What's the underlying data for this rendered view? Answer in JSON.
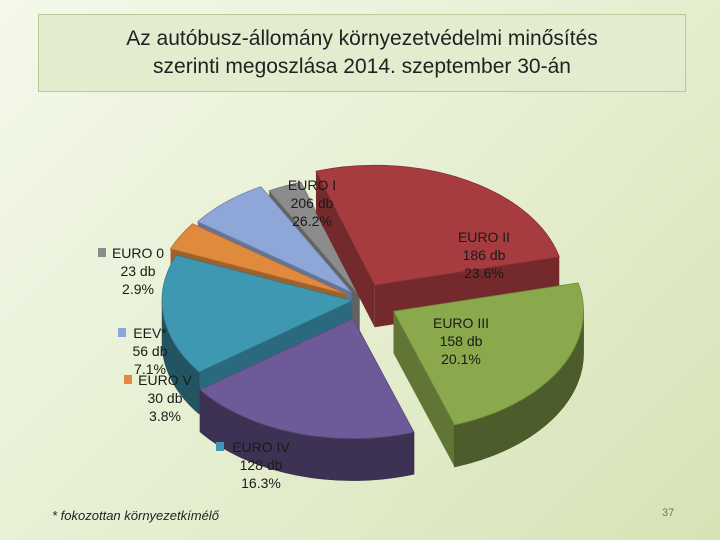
{
  "title": {
    "line1": "Az autóbusz-állomány környezetvédelmi minősítés",
    "line2": "szerinti megoszlása 2014. szeptember 30-án"
  },
  "footnote": "* fokozottan környezetkímélő",
  "page_number": "37",
  "chart_data": {
    "type": "pie",
    "title": "Az autóbusz-állomány környezetvédelmi minősítés szerinti megoszlása 2014. szeptember 30-án",
    "three_d": true,
    "exploded": true,
    "slices": [
      {
        "name": "EURO I",
        "count": "206 db",
        "percent": "26.2%",
        "value": 26.2,
        "color": "#a63c3f"
      },
      {
        "name": "EURO II",
        "count": "186 db",
        "percent": "23.6%",
        "value": 23.6,
        "color": "#8aa84c"
      },
      {
        "name": "EURO III",
        "count": "158 db",
        "percent": "20.1%",
        "value": 20.1,
        "color": "#6e5a98"
      },
      {
        "name": "EURO IV",
        "count": "128 db",
        "percent": "16.3%",
        "value": 16.3,
        "color": "#3e98b2"
      },
      {
        "name": "EURO V",
        "count": "30 db",
        "percent": "3.8%",
        "value": 3.8,
        "color": "#e08a3e"
      },
      {
        "name": "EEV*",
        "count": "56 db",
        "percent": "7.1%",
        "value": 7.1,
        "color": "#8fa6d8"
      },
      {
        "name": "EURO 0",
        "count": "23 db",
        "percent": "2.9%",
        "value": 2.9,
        "color": "#8c8c8c"
      }
    ]
  }
}
